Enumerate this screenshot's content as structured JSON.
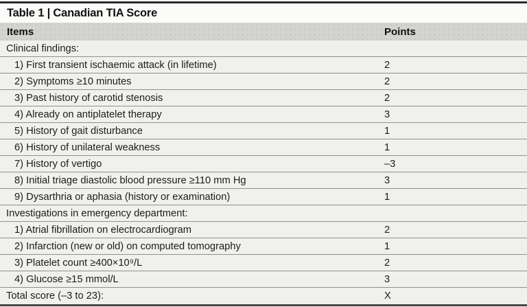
{
  "table": {
    "title": "Table 1 | Canadian TIA Score",
    "columns": {
      "items": "Items",
      "points": "Points"
    },
    "rows": [
      {
        "type": "section",
        "label": "Clinical findings:",
        "points": ""
      },
      {
        "type": "item",
        "label": "1) First transient ischaemic attack (in lifetime)",
        "points": "2"
      },
      {
        "type": "item",
        "label": "2) Symptoms ≥10 minutes",
        "points": "2"
      },
      {
        "type": "item",
        "label": "3) Past history of carotid stenosis",
        "points": "2"
      },
      {
        "type": "item",
        "label": "4) Already on antiplatelet therapy",
        "points": "3"
      },
      {
        "type": "item",
        "label": "5) History of gait disturbance",
        "points": "1"
      },
      {
        "type": "item",
        "label": "6) History of unilateral weakness",
        "points": "1"
      },
      {
        "type": "item",
        "label": "7) History of vertigo",
        "points": "–3"
      },
      {
        "type": "item",
        "label": "8) Initial triage diastolic blood pressure ≥110 mm Hg",
        "points": "3"
      },
      {
        "type": "item",
        "label": "9) Dysarthria or aphasia (history or examination)",
        "points": "1"
      },
      {
        "type": "section",
        "label": "Investigations in emergency department:",
        "points": ""
      },
      {
        "type": "item",
        "label": "1) Atrial fibrillation on electrocardiogram",
        "points": "2"
      },
      {
        "type": "item",
        "label": "2) Infarction (new or old) on computed tomography",
        "points": "1"
      },
      {
        "type": "item",
        "label": "3) Platelet count ≥400×10⁹/L",
        "points": "2"
      },
      {
        "type": "item",
        "label": "4) Glucose ≥15 mmol/L",
        "points": "3"
      },
      {
        "type": "total",
        "label": "Total score (–3 to 23):",
        "points": "X"
      }
    ],
    "colors": {
      "header_bg": "#d3d3d1",
      "row_bg": "#f0f0ee",
      "row_border": "#90908e",
      "top_border": "#2a2a2a",
      "bottom_border": "#454545",
      "text": "#1c1c1c"
    }
  }
}
